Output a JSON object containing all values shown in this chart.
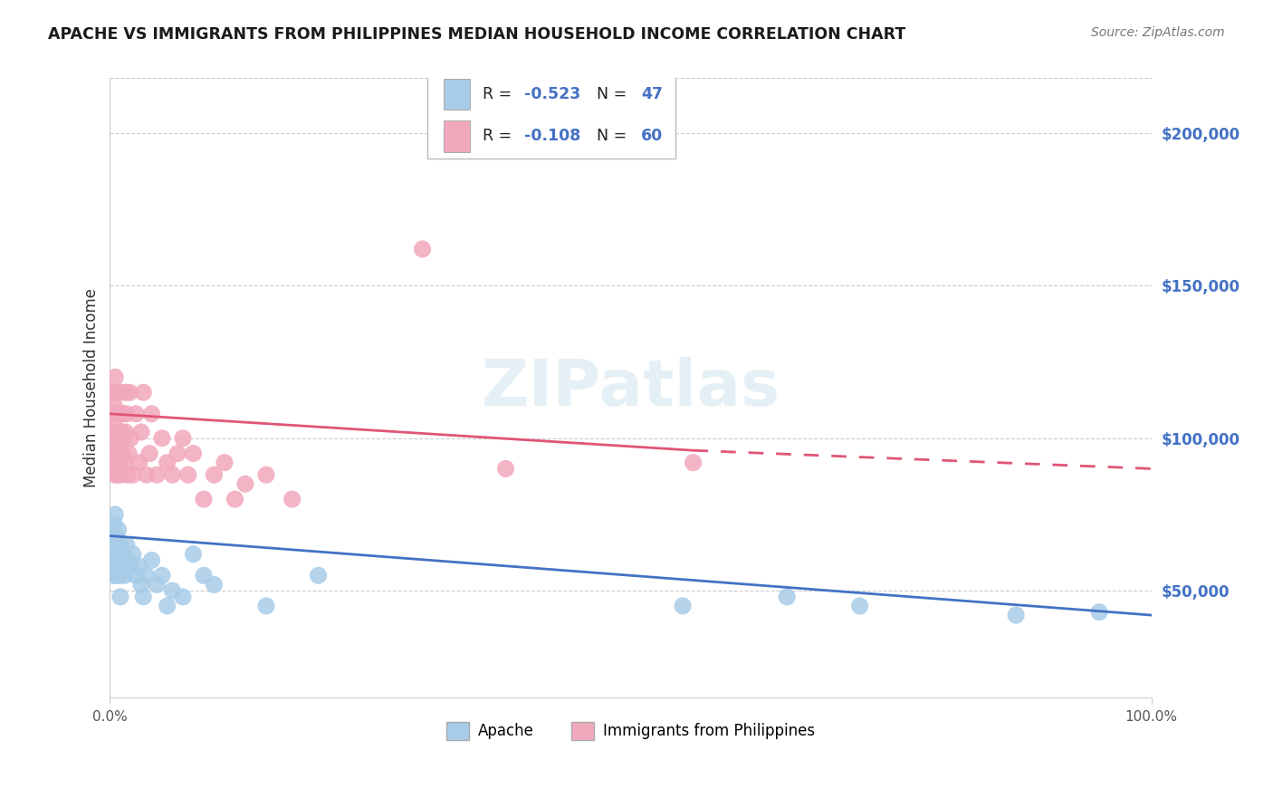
{
  "title": "APACHE VS IMMIGRANTS FROM PHILIPPINES MEDIAN HOUSEHOLD INCOME CORRELATION CHART",
  "source": "Source: ZipAtlas.com",
  "ylabel": "Median Household Income",
  "ytick_positions": [
    50000,
    100000,
    150000,
    200000
  ],
  "ytick_labels": [
    "$50,000",
    "$100,000",
    "$150,000",
    "$200,000"
  ],
  "xlim": [
    0.0,
    1.0
  ],
  "ylim": [
    15000,
    218000
  ],
  "legend_r1": "-0.523",
  "legend_n1": "47",
  "legend_r2": "-0.108",
  "legend_n2": "60",
  "series1_label": "Apache",
  "series2_label": "Immigrants from Philippines",
  "series1_color": "#a8cce8",
  "series2_color": "#f2a8bc",
  "series1_line_color": "#4472c4",
  "series2_line_color": "#e05575",
  "text_color_blue": "#4472c4",
  "watermark": "ZIPatlas",
  "background_color": "#ffffff",
  "grid_color": "#cccccc",
  "apache_x": [
    0.002,
    0.003,
    0.004,
    0.004,
    0.005,
    0.005,
    0.005,
    0.006,
    0.006,
    0.007,
    0.007,
    0.008,
    0.008,
    0.009,
    0.009,
    0.01,
    0.01,
    0.011,
    0.012,
    0.013,
    0.014,
    0.015,
    0.016,
    0.018,
    0.02,
    0.022,
    0.025,
    0.028,
    0.03,
    0.032,
    0.035,
    0.04,
    0.045,
    0.05,
    0.055,
    0.06,
    0.07,
    0.08,
    0.09,
    0.1,
    0.15,
    0.2,
    0.55,
    0.65,
    0.72,
    0.87,
    0.95
  ],
  "apache_y": [
    68000,
    62000,
    55000,
    72000,
    65000,
    58000,
    75000,
    60000,
    68000,
    62000,
    55000,
    70000,
    58000,
    62000,
    55000,
    65000,
    48000,
    60000,
    58000,
    62000,
    55000,
    58000,
    65000,
    60000,
    58000,
    62000,
    55000,
    58000,
    52000,
    48000,
    55000,
    60000,
    52000,
    55000,
    45000,
    50000,
    48000,
    62000,
    55000,
    52000,
    45000,
    55000,
    45000,
    48000,
    45000,
    42000,
    43000
  ],
  "philippines_x": [
    0.002,
    0.002,
    0.003,
    0.003,
    0.004,
    0.004,
    0.005,
    0.005,
    0.005,
    0.006,
    0.006,
    0.006,
    0.007,
    0.007,
    0.008,
    0.008,
    0.008,
    0.009,
    0.009,
    0.01,
    0.01,
    0.01,
    0.011,
    0.012,
    0.012,
    0.013,
    0.014,
    0.015,
    0.015,
    0.016,
    0.017,
    0.018,
    0.019,
    0.02,
    0.022,
    0.025,
    0.028,
    0.03,
    0.032,
    0.035,
    0.038,
    0.04,
    0.045,
    0.05,
    0.055,
    0.06,
    0.065,
    0.07,
    0.075,
    0.08,
    0.09,
    0.1,
    0.11,
    0.12,
    0.13,
    0.15,
    0.175,
    0.3,
    0.38,
    0.56
  ],
  "philippines_y": [
    108000,
    95000,
    100000,
    115000,
    92000,
    105000,
    88000,
    110000,
    120000,
    95000,
    102000,
    115000,
    88000,
    108000,
    95000,
    115000,
    100000,
    92000,
    108000,
    100000,
    115000,
    88000,
    102000,
    95000,
    108000,
    100000,
    92000,
    115000,
    102000,
    108000,
    88000,
    95000,
    115000,
    100000,
    88000,
    108000,
    92000,
    102000,
    115000,
    88000,
    95000,
    108000,
    88000,
    100000,
    92000,
    88000,
    95000,
    100000,
    88000,
    95000,
    80000,
    88000,
    92000,
    80000,
    85000,
    88000,
    80000,
    162000,
    90000,
    92000
  ]
}
